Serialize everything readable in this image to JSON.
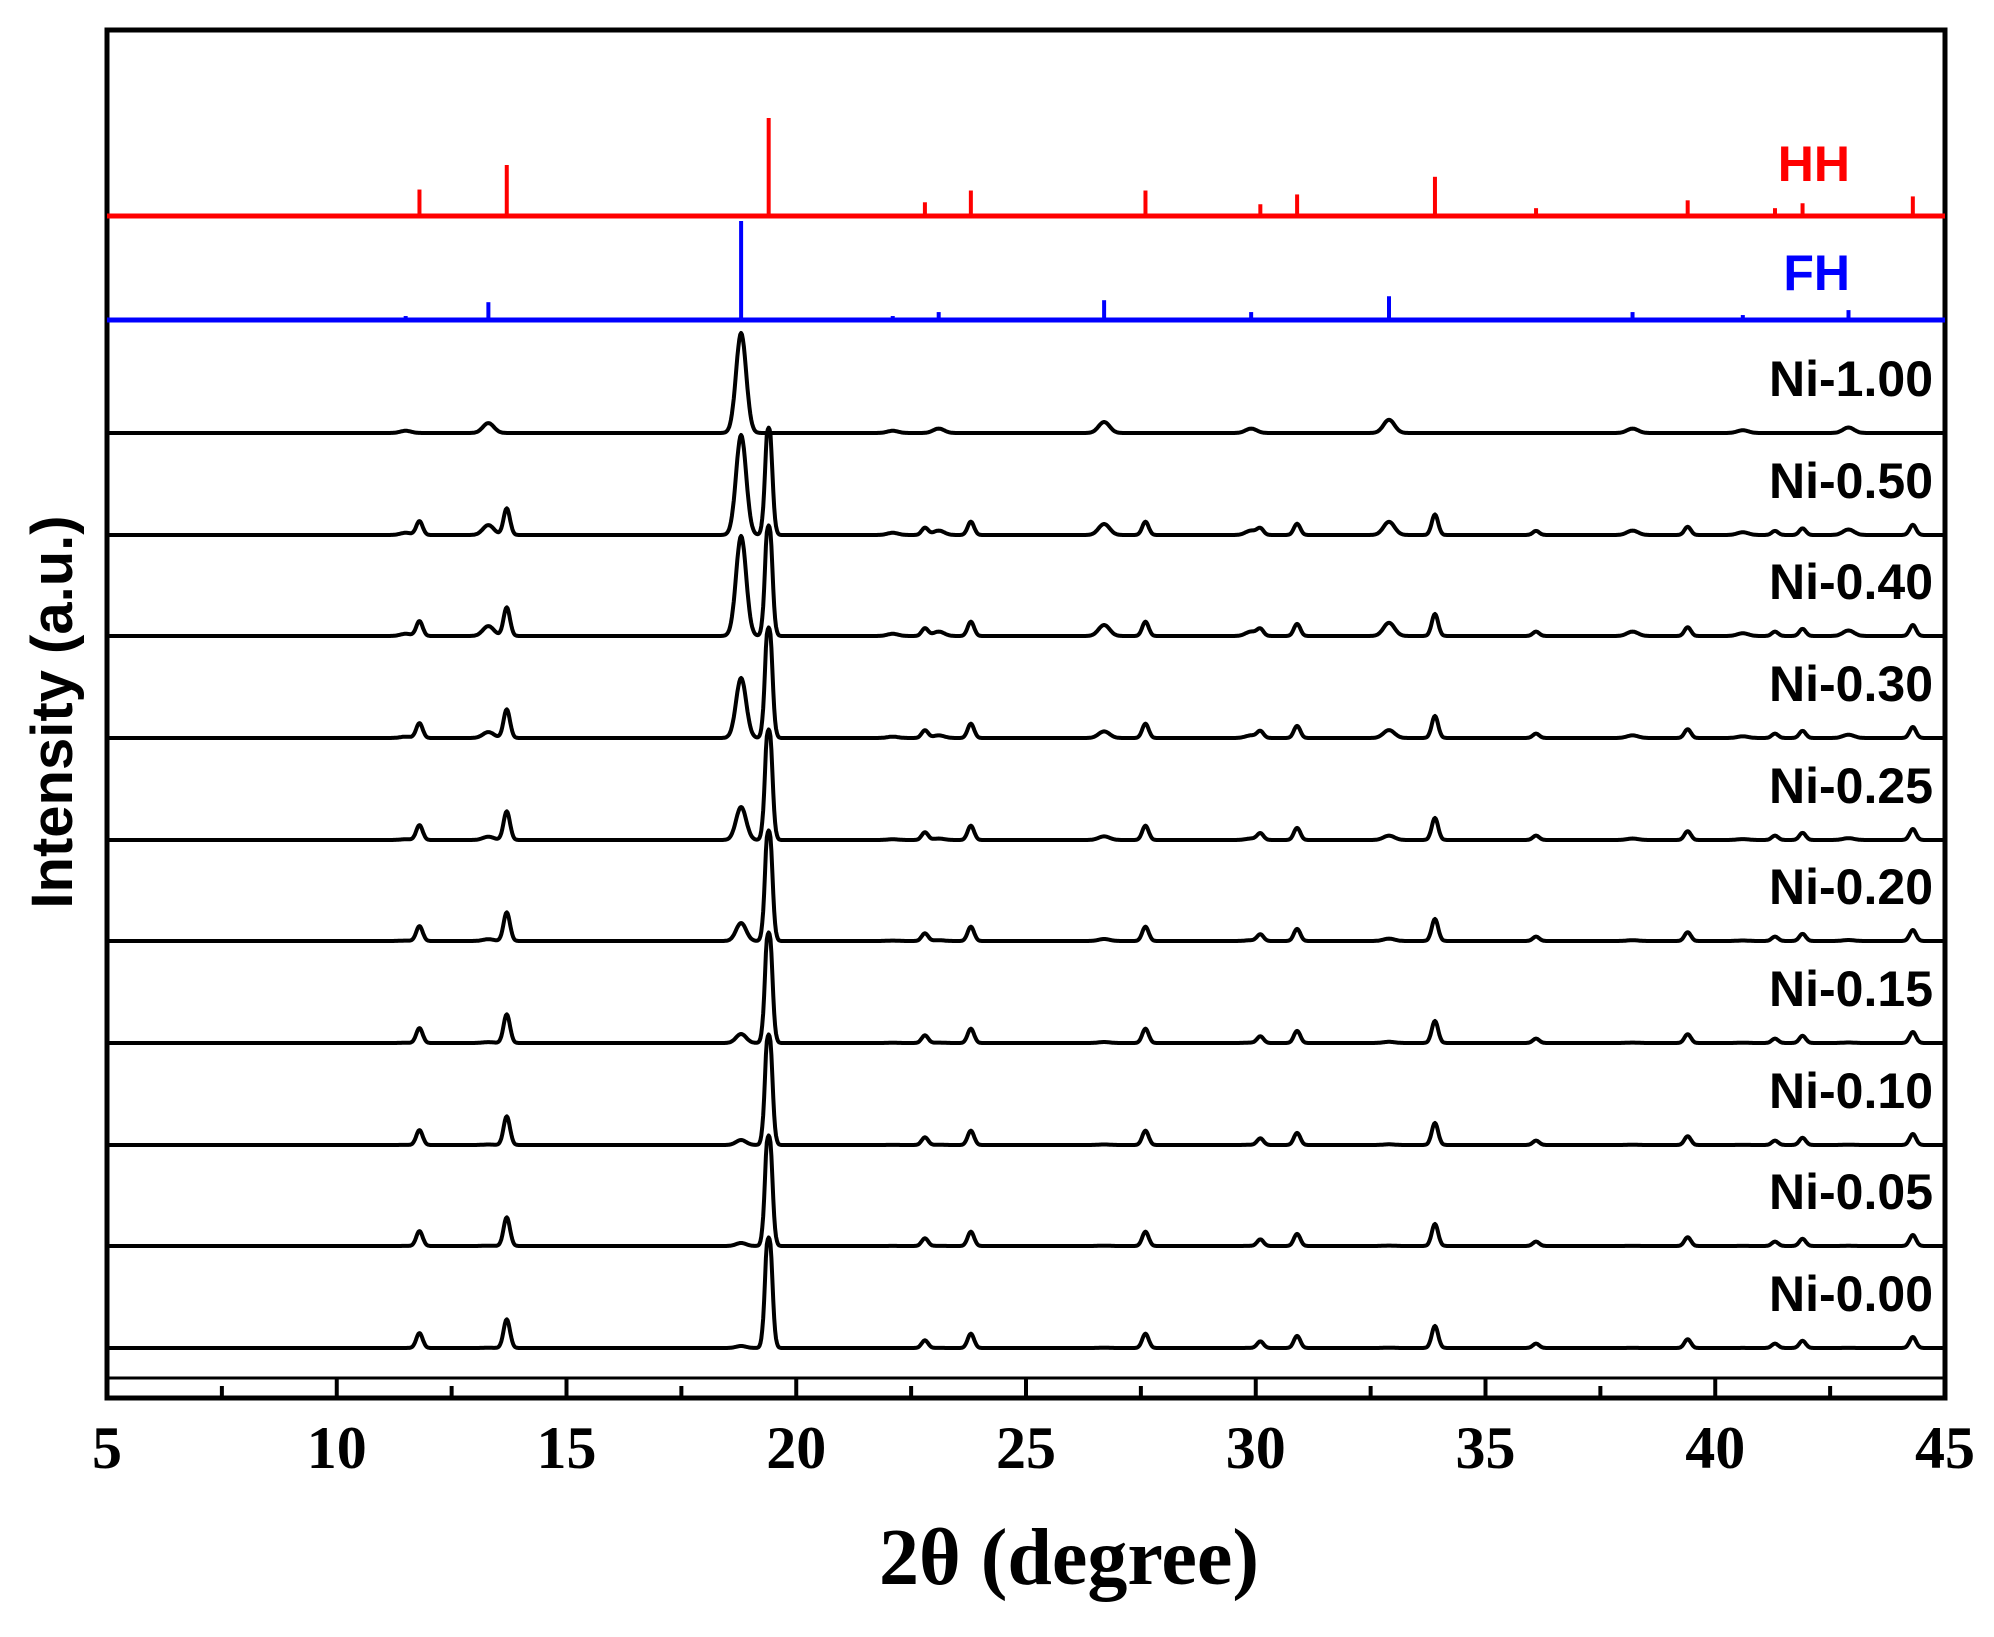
{
  "colors": {
    "axis": "#000000",
    "hh": "#ff0000",
    "fh": "#0000ff",
    "pattern": "#000000"
  },
  "chart_data": {
    "type": "line",
    "title": "",
    "xlabel": "2θ (degree)",
    "ylabel": "Intensity (a.u.)",
    "xlim": [
      5,
      45
    ],
    "xticks": [
      5,
      10,
      15,
      20,
      25,
      30,
      35,
      40,
      45
    ],
    "xticklabels": [
      "5",
      "10",
      "15",
      "20",
      "25",
      "30",
      "35",
      "40",
      "45"
    ],
    "grid": false,
    "legend": "trace labels at right end of each trace",
    "reference_patterns": [
      {
        "name": "HH",
        "color": "#ff0000",
        "peaks": [
          {
            "x": 11.8,
            "i": 0.27
          },
          {
            "x": 13.7,
            "i": 0.52
          },
          {
            "x": 19.4,
            "i": 1.0
          },
          {
            "x": 22.8,
            "i": 0.14
          },
          {
            "x": 23.8,
            "i": 0.26
          },
          {
            "x": 27.6,
            "i": 0.26
          },
          {
            "x": 30.1,
            "i": 0.12
          },
          {
            "x": 30.9,
            "i": 0.22
          },
          {
            "x": 33.9,
            "i": 0.4
          },
          {
            "x": 36.1,
            "i": 0.08
          },
          {
            "x": 39.4,
            "i": 0.16
          },
          {
            "x": 41.3,
            "i": 0.08
          },
          {
            "x": 41.9,
            "i": 0.13
          },
          {
            "x": 44.3,
            "i": 0.2
          }
        ]
      },
      {
        "name": "FH",
        "color": "#0000ff",
        "peaks": [
          {
            "x": 11.5,
            "i": 0.04
          },
          {
            "x": 13.3,
            "i": 0.18
          },
          {
            "x": 18.8,
            "i": 1.0
          },
          {
            "x": 22.1,
            "i": 0.04
          },
          {
            "x": 23.1,
            "i": 0.08
          },
          {
            "x": 26.7,
            "i": 0.2
          },
          {
            "x": 29.9,
            "i": 0.08
          },
          {
            "x": 32.9,
            "i": 0.24
          },
          {
            "x": 38.2,
            "i": 0.08
          },
          {
            "x": 40.6,
            "i": 0.05
          },
          {
            "x": 42.9,
            "i": 0.1
          }
        ]
      }
    ],
    "series": [
      {
        "name": "Ni-1.00",
        "fh": 1.0,
        "hh": 0.0
      },
      {
        "name": "Ni-0.50",
        "fh": 1.0,
        "hh": 0.93
      },
      {
        "name": "Ni-0.40",
        "fh": 1.0,
        "hh": 1.0
      },
      {
        "name": "Ni-0.30",
        "fh": 0.6,
        "hh": 1.0
      },
      {
        "name": "Ni-0.25",
        "fh": 0.33,
        "hh": 1.0
      },
      {
        "name": "Ni-0.20",
        "fh": 0.18,
        "hh": 1.0
      },
      {
        "name": "Ni-0.15",
        "fh": 0.09,
        "hh": 1.0
      },
      {
        "name": "Ni-0.10",
        "fh": 0.05,
        "hh": 1.0
      },
      {
        "name": "Ni-0.05",
        "fh": 0.03,
        "hh": 1.0
      },
      {
        "name": "Ni-0.00",
        "fh": 0.02,
        "hh": 1.0
      }
    ]
  }
}
